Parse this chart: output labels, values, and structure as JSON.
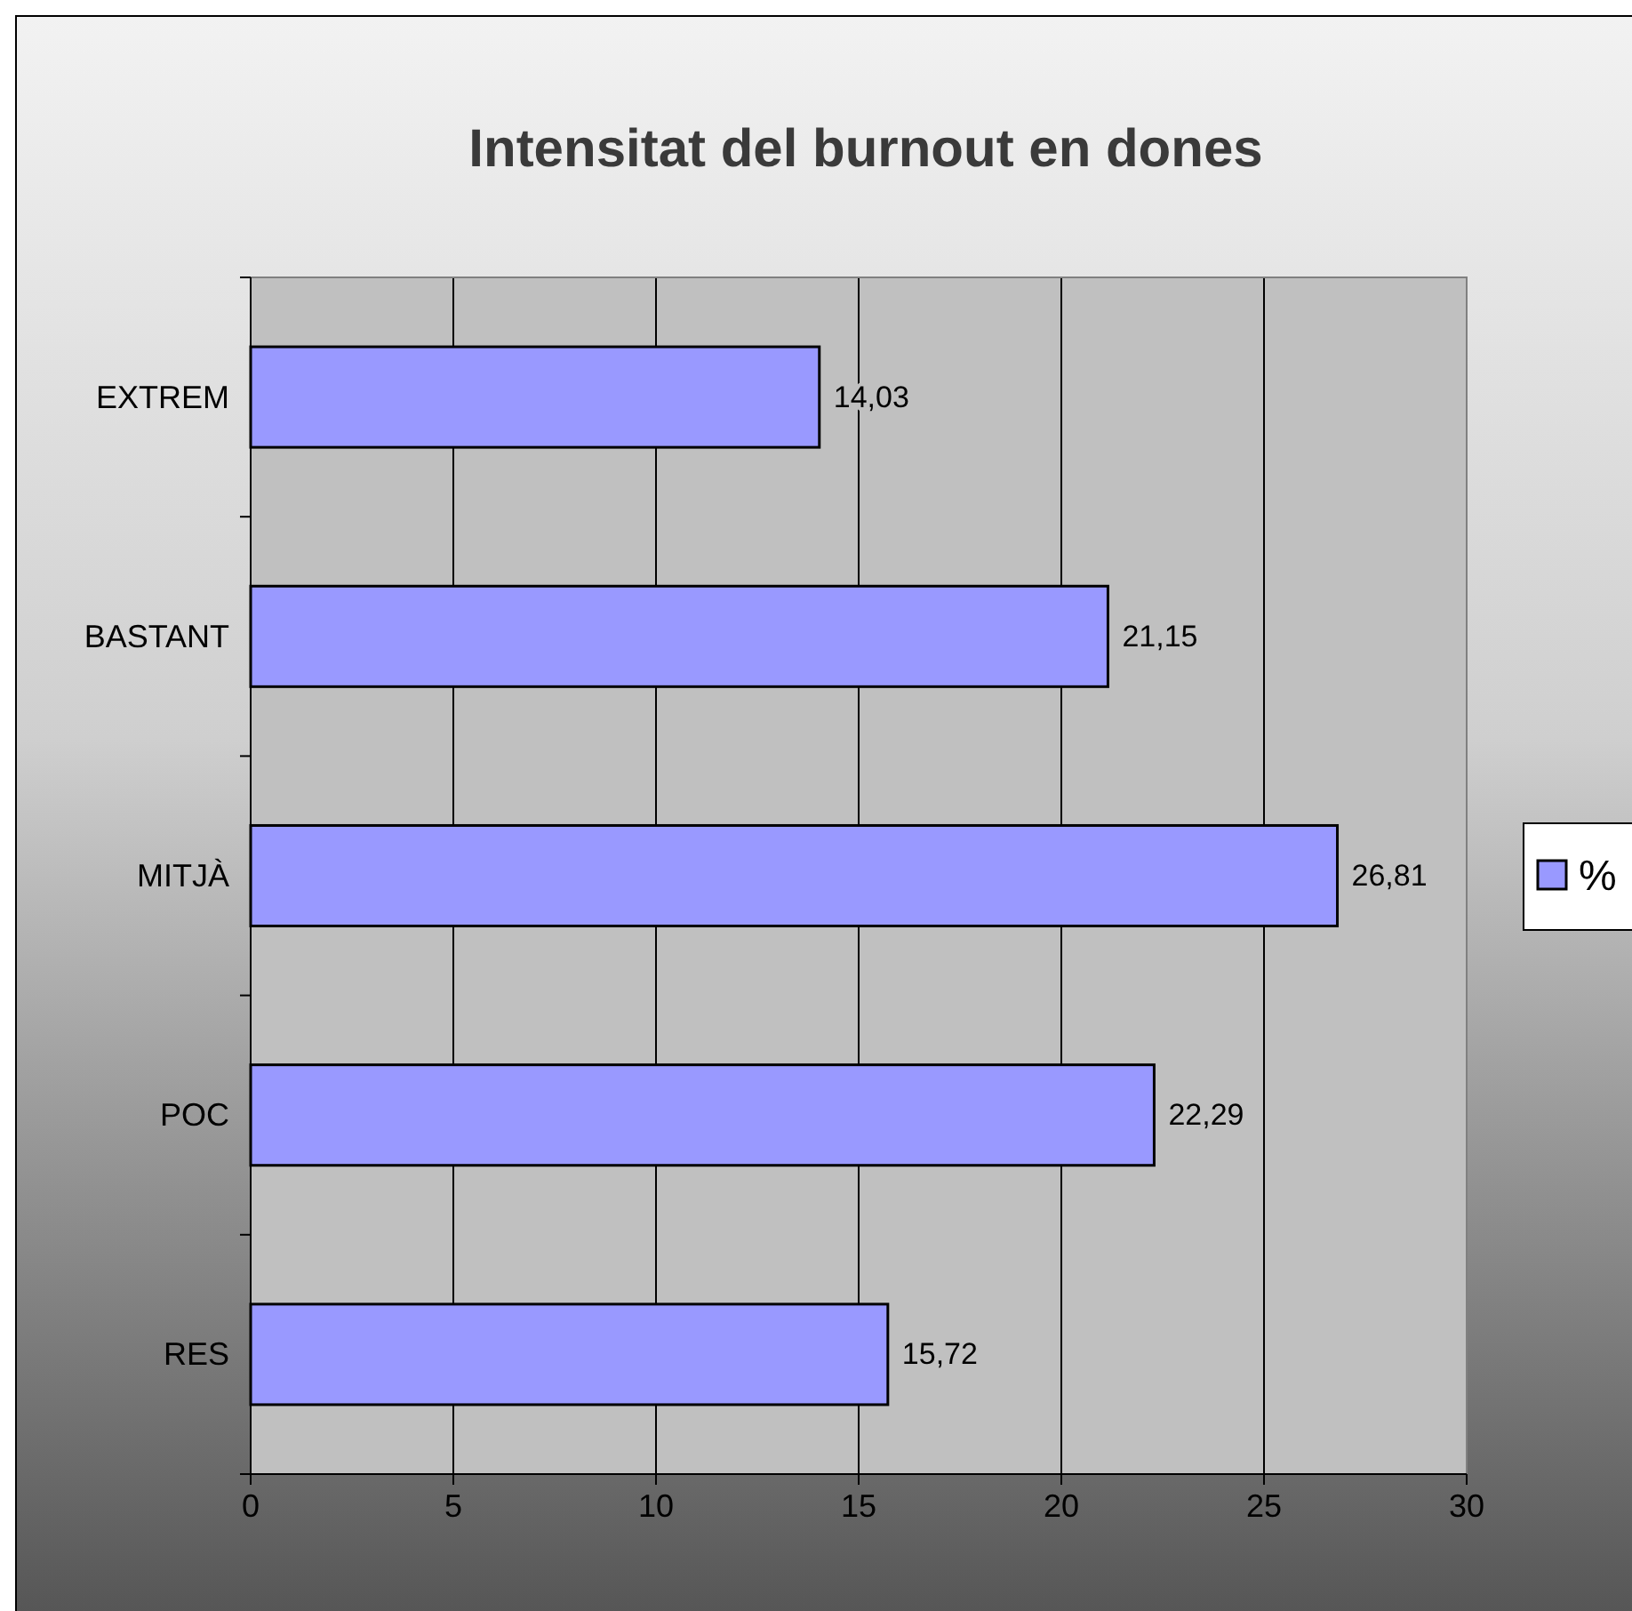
{
  "chart_data": {
    "type": "bar",
    "orientation": "horizontal",
    "title": "Intensitat del burnout en dones",
    "categories": [
      "EXTREM",
      "BASTANT",
      "MITJÀ",
      "POC",
      "RES"
    ],
    "series": [
      {
        "name": "%",
        "color": "#9999ff",
        "values": [
          14.03,
          21.15,
          26.81,
          22.29,
          15.72
        ],
        "value_labels": [
          "14,03",
          "21,15",
          "26,81",
          "22,29",
          "15,72"
        ]
      }
    ],
    "xlim": [
      0,
      30
    ],
    "xticks": [
      0,
      5,
      10,
      15,
      20,
      25,
      30
    ],
    "grid": "x",
    "legend": "right"
  }
}
